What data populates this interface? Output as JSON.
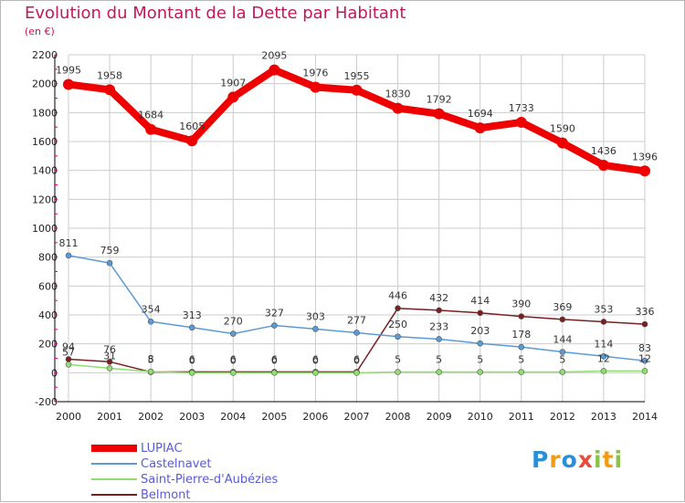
{
  "title": "Evolution du Montant de la Dette par Habitant",
  "unit": "(en €)",
  "brand": "Proxiti",
  "colors": {
    "title": "#c2185b",
    "legend_text": "#5a5ad8",
    "grid": "#cccccc",
    "axis": "#000000"
  },
  "chart_data": {
    "type": "line",
    "title": "Evolution du Montant de la Dette par Habitant",
    "ylabel": "(en €)",
    "xlabel": "",
    "x": [
      "2000",
      "2001",
      "2002",
      "2003",
      "2004",
      "2005",
      "2006",
      "2007",
      "2008",
      "2009",
      "2010",
      "2011",
      "2012",
      "2013",
      "2014"
    ],
    "ylim": [
      -200,
      2200
    ],
    "yticks": [
      -200,
      0,
      200,
      400,
      600,
      800,
      1000,
      1200,
      1400,
      1600,
      1800,
      2000,
      2200
    ],
    "grid": true,
    "legend_position": "bottom-left",
    "series": [
      {
        "name": "LUPIAC",
        "color": "#ee0000",
        "values": [
          1995,
          1958,
          1684,
          1605,
          1907,
          2095,
          1976,
          1955,
          1830,
          1792,
          1694,
          1733,
          1590,
          1436,
          1396
        ]
      },
      {
        "name": "Castelnavet",
        "color": "#5b9bd5",
        "values": [
          811,
          759,
          354,
          313,
          270,
          327,
          303,
          277,
          250,
          233,
          203,
          178,
          144,
          114,
          83
        ]
      },
      {
        "name": "Saint-Pierre-d'Aubézies",
        "color": "#8ee06e",
        "values": [
          57,
          31,
          8,
          0,
          0,
          0,
          0,
          0,
          5,
          5,
          5,
          5,
          5,
          12,
          12
        ]
      },
      {
        "name": "Belmont",
        "color": "#7a1f1f",
        "values": [
          94,
          76,
          5,
          6,
          6,
          6,
          6,
          6,
          446,
          432,
          414,
          390,
          369,
          353,
          336
        ]
      }
    ]
  }
}
